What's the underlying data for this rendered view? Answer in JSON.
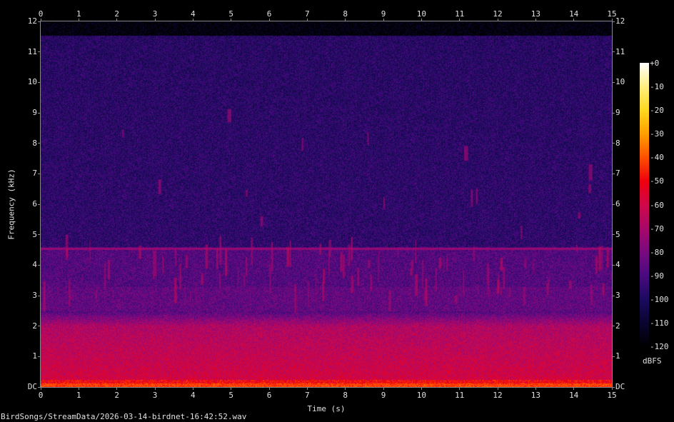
{
  "chart_data": {
    "type": "heatmap",
    "subtype": "spectrogram",
    "xlabel": "Time (s)",
    "ylabel": "Frequency (kHz)",
    "xlim": [
      0,
      15
    ],
    "ylim": [
      0,
      12
    ],
    "x_ticks": [
      "0",
      "1",
      "2",
      "3",
      "4",
      "5",
      "6",
      "7",
      "8",
      "9",
      "10",
      "11",
      "12",
      "13",
      "14",
      "15"
    ],
    "y_ticks": [
      "DC",
      "1",
      "2",
      "3",
      "4",
      "5",
      "6",
      "7",
      "8",
      "9",
      "10",
      "11",
      "12"
    ],
    "colorbar": {
      "label": "dBFS",
      "range": [
        -120,
        0
      ],
      "ticks": [
        "+0",
        "-10",
        "-20",
        "-30",
        "-40",
        "-50",
        "-60",
        "-70",
        "-80",
        "-90",
        "-100",
        "-110",
        "-120"
      ],
      "colors": [
        "#ffffff",
        "#fff080",
        "#ffd820",
        "#ffa000",
        "#ff5000",
        "#f00010",
        "#d0084a",
        "#a8086a",
        "#7a0a80",
        "#4a0a80",
        "#1c0b60",
        "#0a0530",
        "#000000"
      ]
    },
    "features": {
      "steady_tone_khz": 4.55,
      "broadband_energy_below_khz": 2.2,
      "bird_activity_band_khz": [
        2.8,
        4.6
      ]
    },
    "filename": "BirdSongs/StreamData/2026-03-14-birdnet-16:42:52.wav"
  }
}
